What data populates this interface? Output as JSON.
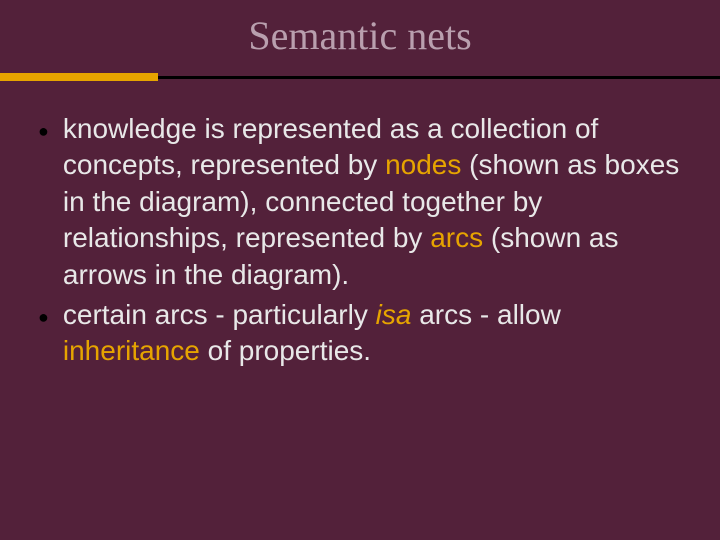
{
  "slide": {
    "title": "Semantic nets",
    "background_color": "#53213a",
    "title_color": "#b99fae",
    "title_fontsize": 40,
    "divider_line_color": "#000000",
    "divider_accent_color": "#e6a400",
    "bullet_color": "#000000",
    "text_color": "#e8e8e8",
    "em_color": "#e6a400",
    "body_fontsize": 28,
    "bullets": [
      {
        "segments": [
          {
            "text": "knowledge is represented as a collection of concepts, represented by ",
            "style": "plain"
          },
          {
            "text": "nodes",
            "style": "em"
          },
          {
            "text": " (shown as boxes in the diagram), connected together by relationships, represented by ",
            "style": "plain"
          },
          {
            "text": "arcs",
            "style": "em"
          },
          {
            "text": " (shown as arrows in the diagram).",
            "style": "plain"
          }
        ]
      },
      {
        "segments": [
          {
            "text": "certain arcs - particularly ",
            "style": "plain"
          },
          {
            "text": "isa",
            "style": "em-italic"
          },
          {
            "text": " arcs - allow ",
            "style": "plain"
          },
          {
            "text": "inheritance",
            "style": "em"
          },
          {
            "text": " of properties.",
            "style": "plain"
          }
        ]
      }
    ]
  }
}
